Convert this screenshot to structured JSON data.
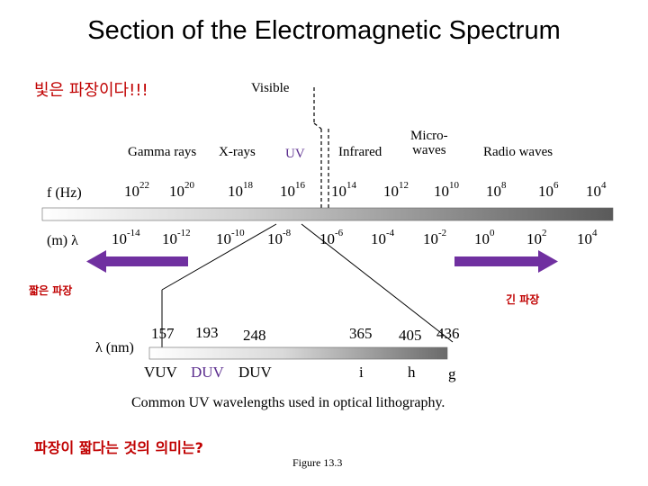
{
  "title": "Section of the Electromagnetic Spectrum",
  "note_korean_top": "빛은 파장이다!!!",
  "visible_label": "Visible",
  "bands": [
    {
      "id": "gamma",
      "label": "Gamma rays"
    },
    {
      "id": "xray",
      "label": "X-rays"
    },
    {
      "id": "uv",
      "label": "UV"
    },
    {
      "id": "infrared",
      "label": "Infrared"
    },
    {
      "id": "micro",
      "label_line1": "Micro-",
      "label_line2": "waves"
    },
    {
      "id": "radio",
      "label": "Radio waves"
    }
  ],
  "freq_row": {
    "label": "f (Hz)",
    "items": [
      {
        "base": "10",
        "exp": "22"
      },
      {
        "base": "10",
        "exp": "20"
      },
      {
        "base": "10",
        "exp": "18"
      },
      {
        "base": "10",
        "exp": "16"
      },
      {
        "base": "10",
        "exp": "14"
      },
      {
        "base": "10",
        "exp": "12"
      },
      {
        "base": "10",
        "exp": "10"
      },
      {
        "base": "10",
        "exp": "8"
      },
      {
        "base": "10",
        "exp": "6"
      },
      {
        "base": "10",
        "exp": "4"
      }
    ]
  },
  "wave_row": {
    "label": "(m) λ",
    "items": [
      {
        "base": "10",
        "exp": "-14"
      },
      {
        "base": "10",
        "exp": "-12"
      },
      {
        "base": "10",
        "exp": "-10"
      },
      {
        "base": "10",
        "exp": "-8"
      },
      {
        "base": "10",
        "exp": "-6"
      },
      {
        "base": "10",
        "exp": "-4"
      },
      {
        "base": "10",
        "exp": "-2"
      },
      {
        "base": "10",
        "exp": "0"
      },
      {
        "base": "10",
        "exp": "2"
      },
      {
        "base": "10",
        "exp": "4"
      }
    ]
  },
  "short_wave_label": "짧은 파장",
  "long_wave_label": "긴 파장",
  "arrow_color": "#7030a0",
  "uv_detail": {
    "axis_label": "λ (nm)",
    "values": [
      "157",
      "193",
      "248",
      "365",
      "405",
      "436"
    ],
    "names": [
      {
        "text": "VUV",
        "color": "#000000"
      },
      {
        "text": "DUV",
        "color": "#5b2d8e"
      },
      {
        "text": "DUV",
        "color": "#000000"
      },
      {
        "text": "i",
        "color": "#000000"
      },
      {
        "text": "h",
        "color": "#000000"
      },
      {
        "text": "g",
        "color": "#000000"
      }
    ],
    "caption": "Common UV wavelengths used in optical lithography."
  },
  "question_korean": "파장이 짧다는 것의 의미는?",
  "figure_label": "Figure 13.3"
}
